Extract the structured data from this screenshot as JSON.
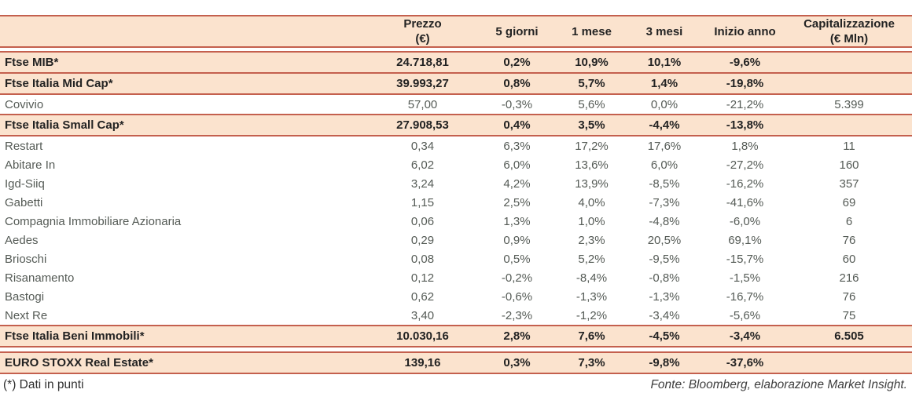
{
  "colors": {
    "accent_border": "#c4604e",
    "highlight_bg": "#fbe3ce",
    "body_text": "#555b56",
    "strong_text": "#232323"
  },
  "table": {
    "headers": {
      "name": "",
      "prezzo_line1": "Prezzo",
      "prezzo_line2": "(€)",
      "d5": "5 giorni",
      "m1": "1 mese",
      "m3": "3 mesi",
      "ytd": "Inizio anno",
      "cap_line1": "Capitalizzazione",
      "cap_line2": "(€ Mln)"
    },
    "rows": [
      {
        "name": "Ftse MIB*",
        "prezzo": "24.718,81",
        "d5": "0,2%",
        "m1": "10,9%",
        "m3": "10,1%",
        "ytd": "-9,6%",
        "cap": "",
        "kind": "index",
        "gap_before": false
      },
      {
        "name": "Ftse Italia Mid Cap*",
        "prezzo": "39.993,27",
        "d5": "0,8%",
        "m1": "5,7%",
        "m3": "1,4%",
        "ytd": "-19,8%",
        "cap": "",
        "kind": "index",
        "gap_before": false
      },
      {
        "name": "Covivio",
        "prezzo": "57,00",
        "d5": "-0,3%",
        "m1": "5,6%",
        "m3": "0,0%",
        "ytd": "-21,2%",
        "cap": "5.399",
        "kind": "stock",
        "gap_before": false
      },
      {
        "name": "Ftse Italia Small Cap*",
        "prezzo": "27.908,53",
        "d5": "0,4%",
        "m1": "3,5%",
        "m3": "-4,4%",
        "ytd": "-13,8%",
        "cap": "",
        "kind": "index",
        "gap_before": false
      },
      {
        "name": "Restart",
        "prezzo": "0,34",
        "d5": "6,3%",
        "m1": "17,2%",
        "m3": "17,6%",
        "ytd": "1,8%",
        "cap": "11",
        "kind": "stock",
        "gap_before": false
      },
      {
        "name": "Abitare In",
        "prezzo": "6,02",
        "d5": "6,0%",
        "m1": "13,6%",
        "m3": "6,0%",
        "ytd": "-27,2%",
        "cap": "160",
        "kind": "stock",
        "gap_before": false
      },
      {
        "name": "Igd-Siiq",
        "prezzo": "3,24",
        "d5": "4,2%",
        "m1": "13,9%",
        "m3": "-8,5%",
        "ytd": "-16,2%",
        "cap": "357",
        "kind": "stock",
        "gap_before": false
      },
      {
        "name": "Gabetti",
        "prezzo": "1,15",
        "d5": "2,5%",
        "m1": "4,0%",
        "m3": "-7,3%",
        "ytd": "-41,6%",
        "cap": "69",
        "kind": "stock",
        "gap_before": false
      },
      {
        "name": "Compagnia Immobiliare Azionaria",
        "prezzo": "0,06",
        "d5": "1,3%",
        "m1": "1,0%",
        "m3": "-4,8%",
        "ytd": "-6,0%",
        "cap": "6",
        "kind": "stock",
        "gap_before": false
      },
      {
        "name": "Aedes",
        "prezzo": "0,29",
        "d5": "0,9%",
        "m1": "2,3%",
        "m3": "20,5%",
        "ytd": "69,1%",
        "cap": "76",
        "kind": "stock",
        "gap_before": false
      },
      {
        "name": "Brioschi",
        "prezzo": "0,08",
        "d5": "0,5%",
        "m1": "5,2%",
        "m3": "-9,5%",
        "ytd": "-15,7%",
        "cap": "60",
        "kind": "stock",
        "gap_before": false
      },
      {
        "name": "Risanamento",
        "prezzo": "0,12",
        "d5": "-0,2%",
        "m1": "-8,4%",
        "m3": "-0,8%",
        "ytd": "-1,5%",
        "cap": "216",
        "kind": "stock",
        "gap_before": false
      },
      {
        "name": "Bastogi",
        "prezzo": "0,62",
        "d5": "-0,6%",
        "m1": "-1,3%",
        "m3": "-1,3%",
        "ytd": "-16,7%",
        "cap": "76",
        "kind": "stock",
        "gap_before": false
      },
      {
        "name": "Next Re",
        "prezzo": "3,40",
        "d5": "-2,3%",
        "m1": "-1,2%",
        "m3": "-3,4%",
        "ytd": "-5,6%",
        "cap": "75",
        "kind": "stock",
        "gap_before": false
      },
      {
        "name": "Ftse Italia Beni Immobili*",
        "prezzo": "10.030,16",
        "d5": "2,8%",
        "m1": "7,6%",
        "m3": "-4,5%",
        "ytd": "-3,4%",
        "cap": "6.505",
        "kind": "index",
        "gap_before": false
      },
      {
        "name": "EURO STOXX Real Estate*",
        "prezzo": "139,16",
        "d5": "0,3%",
        "m1": "7,3%",
        "m3": "-9,8%",
        "ytd": "-37,6%",
        "cap": "",
        "kind": "index",
        "gap_before": true
      }
    ]
  },
  "footer": {
    "footnote": "(*) Dati in punti",
    "source": "Fonte: Bloomberg, elaborazione Market Insight."
  }
}
